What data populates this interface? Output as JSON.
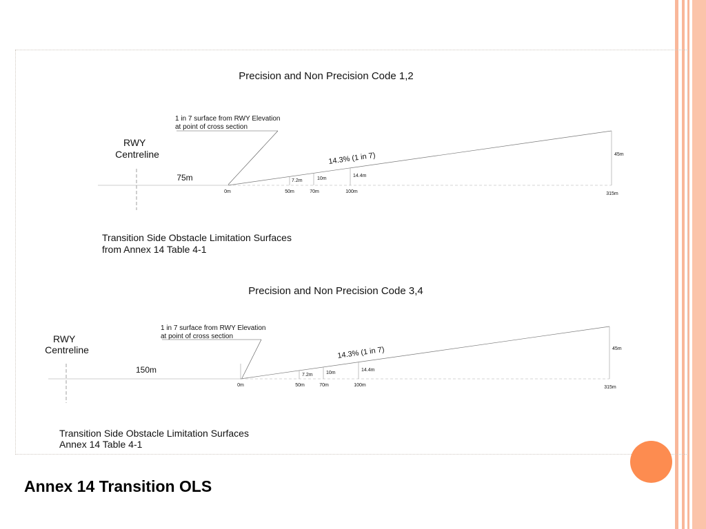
{
  "slide": {
    "title": "Annex 14 Transition OLS",
    "accent_color": "#fd8c50",
    "stripe_color": "#f9b79a"
  },
  "diagram_code_1_2": {
    "heading": "Precision and Non Precision Code 1,2",
    "callout": [
      "1 in 7 surface from RWY Elevation",
      "at point of cross section"
    ],
    "rwy_label": [
      "RWY",
      "Centreline"
    ],
    "offset_label": "75m",
    "slope_label": "14.3% (1 in 7)",
    "distance_labels": [
      "0m",
      "50m",
      "70m",
      "100m",
      "315m"
    ],
    "height_labels": [
      "7.2m",
      "10m",
      "14.4m",
      "45m"
    ],
    "caption": [
      "Transition Side Obstacle Limitation Surfaces",
      "from Annex 14 Table 4-1"
    ]
  },
  "diagram_code_3_4": {
    "heading": "Precision and Non Precision Code 3,4",
    "callout": [
      "1 in 7 surface from RWY Elevation",
      "at point of cross section"
    ],
    "rwy_label": [
      "RWY",
      "Centreline"
    ],
    "offset_label": "150m",
    "slope_label": "14.3% (1 in 7)",
    "distance_labels": [
      "0m",
      "50m",
      "70m",
      "100m",
      "315m"
    ],
    "height_labels": [
      "7.2m",
      "10m",
      "14.4m",
      "45m"
    ],
    "caption": [
      "Transition Side Obstacle Limitation Surfaces",
      "Annex 14 Table 4-1"
    ]
  }
}
